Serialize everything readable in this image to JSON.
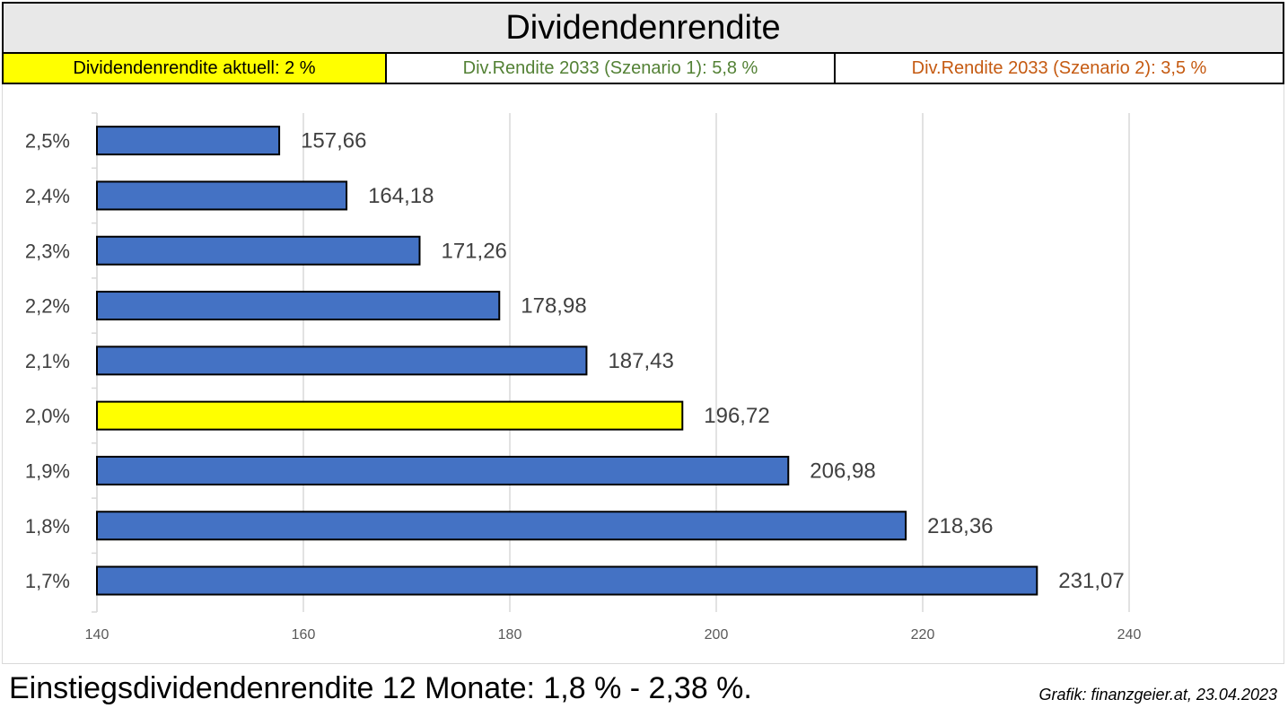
{
  "header": {
    "title": "Dividendenrendite",
    "current_yield": "Dividendenrendite aktuell: 2 %",
    "scenario1": "Div.Rendite 2033 (Szenario 1): 5,8 %",
    "scenario2": "Div.Rendite 2033 (Szenario 2): 3,5 %"
  },
  "footer": {
    "note": "Einstiegsdividendenrendite 12 Monate: 1,8 % - 2,38 %.",
    "source": "Grafik: finanzgeier.at, 23.04.2023"
  },
  "colors": {
    "bar": "#4472c4",
    "highlight": "#ffff00",
    "scenario1_text": "#538135",
    "scenario2_text": "#c55a11"
  },
  "chart_data": {
    "type": "bar",
    "orientation": "horizontal",
    "categories": [
      "2,5%",
      "2,4%",
      "2,3%",
      "2,2%",
      "2,1%",
      "2,0%",
      "1,9%",
      "1,8%",
      "1,7%"
    ],
    "values": [
      157.66,
      164.18,
      171.26,
      178.98,
      187.43,
      196.72,
      206.98,
      218.36,
      231.07
    ],
    "value_labels": [
      "157,66",
      "164,18",
      "171,26",
      "178,98",
      "187,43",
      "196,72",
      "206,98",
      "218,36",
      "231,07"
    ],
    "highlight_category": "2,0%",
    "xlim": [
      140,
      240
    ],
    "xticks": [
      140,
      160,
      180,
      200,
      220,
      240
    ],
    "grid": true,
    "title": "Dividendenrendite"
  }
}
